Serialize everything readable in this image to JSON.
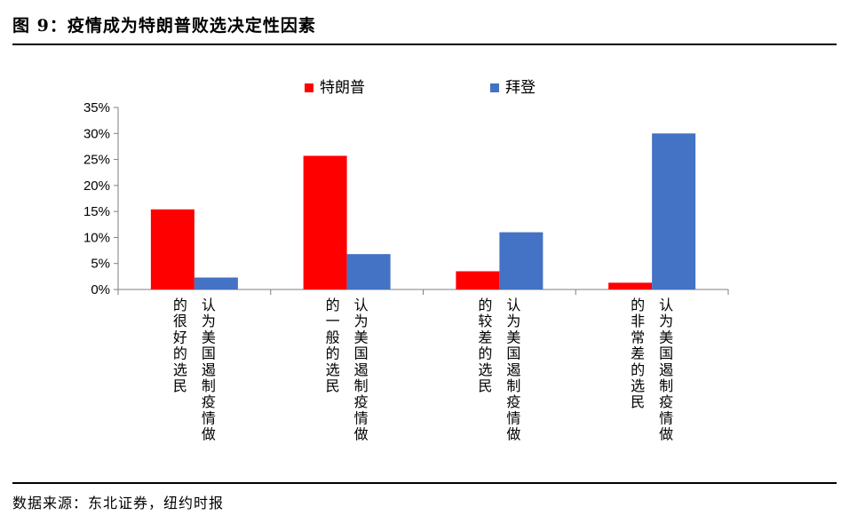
{
  "figure": {
    "title": "图 9：疫情成为特朗普败选决定性因素",
    "source": "数据来源：东北证券，纽约时报"
  },
  "chart_data": {
    "type": "bar",
    "categories": [
      {
        "col1": "认为美国遏制疫情做",
        "col2": "的很好的选民"
      },
      {
        "col1": "认为美国遏制疫情做",
        "col2": "的一般的选民"
      },
      {
        "col1": "认为美国遏制疫情做",
        "col2": "的较差的选民"
      },
      {
        "col1": "认为美国遏制疫情做",
        "col2": "的非常差的选民"
      }
    ],
    "series": [
      {
        "name": "特朗普",
        "color": "#ff0000",
        "values": [
          15.4,
          25.7,
          3.5,
          1.3
        ]
      },
      {
        "name": "拜登",
        "color": "#4472c4",
        "values": [
          2.3,
          6.8,
          11.0,
          30.0
        ]
      }
    ],
    "yticks": [
      "0%",
      "5%",
      "10%",
      "15%",
      "20%",
      "25%",
      "30%",
      "35%"
    ],
    "ylim": [
      0,
      35
    ],
    "legend_position": "top",
    "grid": false
  }
}
